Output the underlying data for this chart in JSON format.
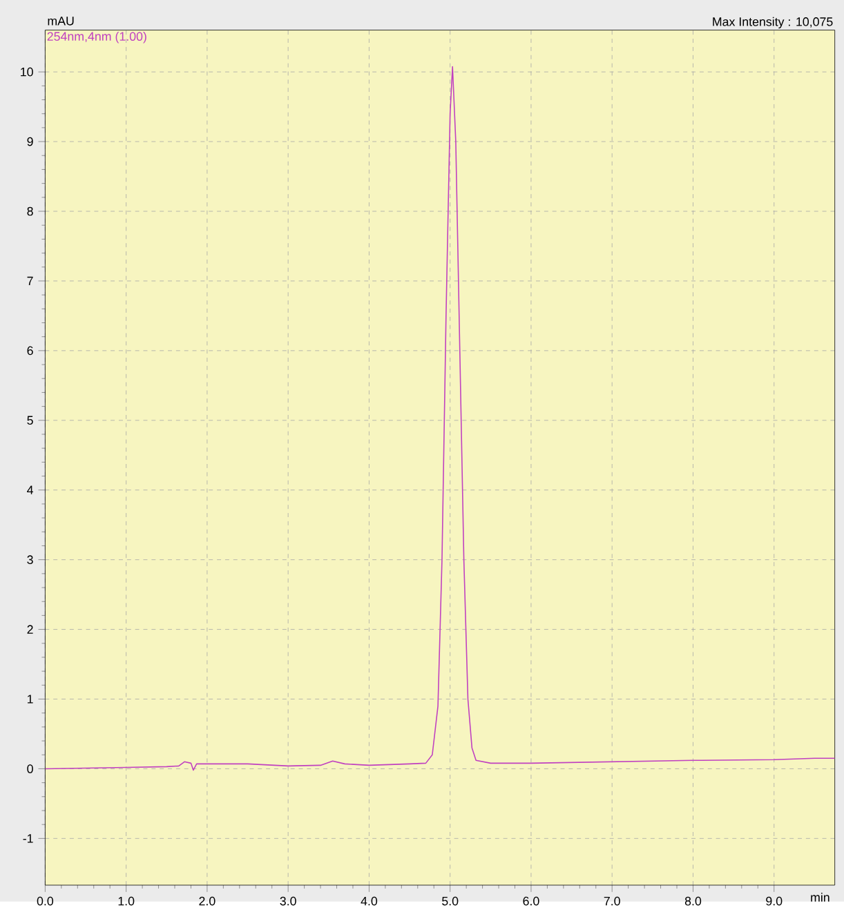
{
  "chart_data": {
    "type": "line",
    "xlabel": "min",
    "ylabel": "mAU",
    "annotations": [
      "Max Intensity :  10,075"
    ],
    "xlim": [
      0,
      9.75
    ],
    "ylim": [
      -1.67,
      10.6
    ],
    "xticks": [
      {
        "value": 0,
        "label": "0.0"
      },
      {
        "value": 1,
        "label": "1.0"
      },
      {
        "value": 2,
        "label": "2.0"
      },
      {
        "value": 3,
        "label": "3.0"
      },
      {
        "value": 4,
        "label": "4.0"
      },
      {
        "value": 5,
        "label": "5.0"
      },
      {
        "value": 6,
        "label": "6.0"
      },
      {
        "value": 7,
        "label": "7.0"
      },
      {
        "value": 8,
        "label": "8.0"
      },
      {
        "value": 9,
        "label": "9.0"
      }
    ],
    "yticks": [
      -1,
      0,
      1,
      2,
      3,
      4,
      5,
      6,
      7,
      8,
      9,
      10
    ],
    "grid": true,
    "line_style": "solid",
    "marker": "none",
    "x": [
      0,
      0.5,
      1.0,
      1.5,
      1.65,
      1.72,
      1.8,
      1.83,
      1.87,
      2.0,
      2.5,
      3.0,
      3.4,
      3.55,
      3.7,
      4.0,
      4.5,
      4.7,
      4.78,
      4.85,
      4.9,
      4.95,
      5.0,
      5.03,
      5.07,
      5.12,
      5.17,
      5.22,
      5.27,
      5.32,
      5.5,
      6.0,
      7.0,
      8.0,
      9.0,
      9.5,
      9.75
    ],
    "series": [
      {
        "name": "254nm,4nm (1.00)",
        "color": "#c040c0",
        "values": [
          0.0,
          0.01,
          0.02,
          0.03,
          0.04,
          0.1,
          0.08,
          -0.02,
          0.07,
          0.07,
          0.07,
          0.04,
          0.05,
          0.11,
          0.07,
          0.05,
          0.07,
          0.08,
          0.2,
          0.9,
          3.0,
          6.5,
          9.4,
          10.075,
          9.0,
          6.0,
          3.0,
          1.0,
          0.3,
          0.12,
          0.08,
          0.08,
          0.1,
          0.12,
          0.13,
          0.15,
          0.15
        ]
      }
    ]
  }
}
